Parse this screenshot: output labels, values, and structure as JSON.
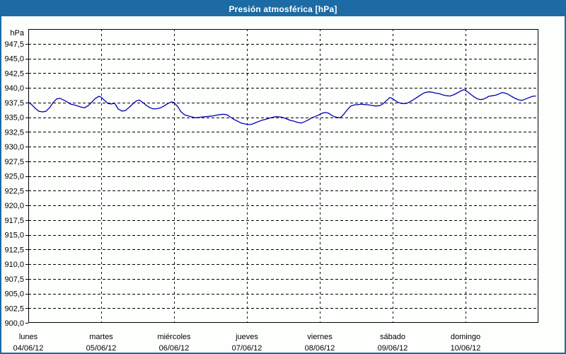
{
  "window": {
    "title": "Presión atmosférica [hPa]"
  },
  "colors": {
    "titlebar_bg": "#1c6ba4",
    "title_text": "#ffffff",
    "frame": "#000000",
    "grid": "#000000",
    "line": "#0000b0",
    "background": "#fdfffd"
  },
  "chart_data": {
    "type": "line",
    "title": "Presión atmosférica [hPa]",
    "unit_label": "hPa",
    "y_min": 900,
    "y_max": 950,
    "y_tick_step": 2.5,
    "grid": true,
    "legend": "none",
    "y_ticks": [
      {
        "value": 900.0,
        "label": "900,0"
      },
      {
        "value": 902.5,
        "label": "902,5"
      },
      {
        "value": 905.0,
        "label": "905,0"
      },
      {
        "value": 907.5,
        "label": "907,5"
      },
      {
        "value": 910.0,
        "label": "910,0"
      },
      {
        "value": 912.5,
        "label": "912,5"
      },
      {
        "value": 915.0,
        "label": "915,0"
      },
      {
        "value": 917.5,
        "label": "917,5"
      },
      {
        "value": 920.0,
        "label": "920,0"
      },
      {
        "value": 922.5,
        "label": "922,5"
      },
      {
        "value": 925.0,
        "label": "925,0"
      },
      {
        "value": 927.5,
        "label": "927,5"
      },
      {
        "value": 930.0,
        "label": "930,0"
      },
      {
        "value": 932.5,
        "label": "932,5"
      },
      {
        "value": 935.0,
        "label": "935,0"
      },
      {
        "value": 937.5,
        "label": "937,5"
      },
      {
        "value": 940.0,
        "label": "940,0"
      },
      {
        "value": 942.5,
        "label": "942,5"
      },
      {
        "value": 945.0,
        "label": "945,0"
      },
      {
        "value": 947.5,
        "label": "947,5"
      }
    ],
    "days": [
      {
        "name": "lunes",
        "date": "04/06/12"
      },
      {
        "name": "martes",
        "date": "05/06/12"
      },
      {
        "name": "miércoles",
        "date": "06/06/12"
      },
      {
        "name": "jueves",
        "date": "07/06/12"
      },
      {
        "name": "viernes",
        "date": "08/06/12"
      },
      {
        "name": "sábado",
        "date": "09/06/12"
      },
      {
        "name": "domingo",
        "date": "10/06/12"
      }
    ],
    "hours_total": 168,
    "series_name": "Presión atmosférica",
    "points": [
      [
        0,
        937.6
      ],
      [
        1.2,
        937.1
      ],
      [
        2.3,
        936.5
      ],
      [
        3.5,
        936.0
      ],
      [
        4.7,
        935.9
      ],
      [
        5.8,
        936.0
      ],
      [
        7.0,
        936.6
      ],
      [
        8.2,
        937.5
      ],
      [
        9.3,
        938.1
      ],
      [
        10.5,
        938.2
      ],
      [
        11.7,
        937.9
      ],
      [
        12.8,
        937.6
      ],
      [
        14.0,
        937.2
      ],
      [
        15.1,
        937.1
      ],
      [
        16.3,
        936.9
      ],
      [
        17.5,
        936.7
      ],
      [
        18.6,
        936.6
      ],
      [
        19.8,
        937.0
      ],
      [
        21.0,
        937.6
      ],
      [
        22.1,
        938.2
      ],
      [
        23.3,
        938.55
      ],
      [
        24.0,
        938.4
      ],
      [
        25.2,
        937.8
      ],
      [
        26.3,
        937.3
      ],
      [
        27.5,
        937.25
      ],
      [
        28.4,
        937.4
      ],
      [
        29.6,
        936.4
      ],
      [
        30.8,
        936.05
      ],
      [
        31.9,
        936.1
      ],
      [
        33.3,
        936.7
      ],
      [
        34.5,
        937.3
      ],
      [
        35.7,
        937.8
      ],
      [
        36.6,
        937.9
      ],
      [
        37.7,
        937.5
      ],
      [
        38.9,
        937.0
      ],
      [
        40.1,
        936.6
      ],
      [
        41.2,
        936.4
      ],
      [
        42.4,
        936.45
      ],
      [
        43.6,
        936.6
      ],
      [
        44.7,
        936.9
      ],
      [
        45.9,
        937.3
      ],
      [
        47.1,
        937.6
      ],
      [
        48.0,
        937.5
      ],
      [
        49.2,
        936.8
      ],
      [
        50.3,
        935.9
      ],
      [
        51.5,
        935.4
      ],
      [
        52.7,
        935.2
      ],
      [
        53.8,
        935.05
      ],
      [
        55.0,
        934.9
      ],
      [
        56.2,
        934.95
      ],
      [
        57.3,
        935.05
      ],
      [
        58.5,
        935.1
      ],
      [
        59.6,
        935.15
      ],
      [
        60.8,
        935.2
      ],
      [
        62.0,
        935.35
      ],
      [
        63.1,
        935.45
      ],
      [
        64.3,
        935.5
      ],
      [
        65.5,
        935.4
      ],
      [
        66.6,
        935.0
      ],
      [
        67.8,
        934.6
      ],
      [
        69.0,
        934.3
      ],
      [
        70.1,
        934.0
      ],
      [
        71.3,
        933.85
      ],
      [
        72.5,
        933.75
      ],
      [
        73.6,
        933.8
      ],
      [
        74.8,
        934.05
      ],
      [
        76.0,
        934.3
      ],
      [
        77.1,
        934.5
      ],
      [
        78.3,
        934.65
      ],
      [
        79.5,
        934.85
      ],
      [
        80.6,
        935.0
      ],
      [
        81.8,
        935.1
      ],
      [
        82.9,
        935.05
      ],
      [
        84.1,
        934.9
      ],
      [
        85.3,
        934.65
      ],
      [
        86.4,
        934.45
      ],
      [
        87.6,
        934.3
      ],
      [
        88.8,
        934.1
      ],
      [
        89.9,
        934.0
      ],
      [
        91.1,
        934.25
      ],
      [
        92.3,
        934.55
      ],
      [
        93.4,
        934.9
      ],
      [
        94.6,
        935.15
      ],
      [
        95.8,
        935.4
      ],
      [
        96.9,
        935.7
      ],
      [
        97.9,
        935.8
      ],
      [
        98.8,
        935.7
      ],
      [
        99.7,
        935.4
      ],
      [
        100.7,
        935.1
      ],
      [
        101.8,
        934.95
      ],
      [
        102.8,
        934.9
      ],
      [
        103.9,
        935.5
      ],
      [
        105.1,
        936.3
      ],
      [
        106.2,
        936.9
      ],
      [
        107.4,
        937.1
      ],
      [
        108.6,
        937.15
      ],
      [
        109.7,
        937.2
      ],
      [
        110.9,
        937.15
      ],
      [
        112.1,
        937.1
      ],
      [
        113.2,
        937.0
      ],
      [
        114.4,
        936.9
      ],
      [
        115.6,
        936.95
      ],
      [
        116.7,
        937.2
      ],
      [
        117.9,
        937.8
      ],
      [
        119.1,
        938.35
      ],
      [
        120.0,
        938.15
      ],
      [
        120.9,
        937.8
      ],
      [
        121.9,
        937.5
      ],
      [
        122.8,
        937.35
      ],
      [
        123.7,
        937.3
      ],
      [
        124.9,
        937.4
      ],
      [
        126.1,
        937.75
      ],
      [
        127.2,
        938.1
      ],
      [
        128.4,
        938.5
      ],
      [
        129.6,
        938.9
      ],
      [
        130.7,
        939.2
      ],
      [
        131.9,
        939.3
      ],
      [
        133.0,
        939.25
      ],
      [
        134.2,
        939.1
      ],
      [
        135.4,
        939.0
      ],
      [
        136.5,
        938.8
      ],
      [
        137.7,
        938.65
      ],
      [
        138.9,
        938.6
      ],
      [
        140.0,
        938.8
      ],
      [
        141.2,
        939.1
      ],
      [
        142.4,
        939.45
      ],
      [
        143.5,
        939.7
      ],
      [
        144.7,
        939.3
      ],
      [
        145.9,
        938.8
      ],
      [
        147.0,
        938.4
      ],
      [
        148.0,
        938.1
      ],
      [
        148.9,
        938.0
      ],
      [
        149.8,
        938.05
      ],
      [
        150.8,
        938.3
      ],
      [
        151.7,
        938.55
      ],
      [
        152.9,
        938.65
      ],
      [
        154.0,
        938.75
      ],
      [
        155.2,
        939.0
      ],
      [
        156.1,
        939.2
      ],
      [
        157.0,
        939.1
      ],
      [
        158.0,
        938.9
      ],
      [
        159.1,
        938.55
      ],
      [
        160.3,
        938.2
      ],
      [
        161.5,
        937.95
      ],
      [
        162.6,
        937.85
      ],
      [
        163.8,
        938.1
      ],
      [
        165.0,
        938.35
      ],
      [
        166.1,
        938.55
      ],
      [
        167.1,
        938.6
      ]
    ]
  }
}
